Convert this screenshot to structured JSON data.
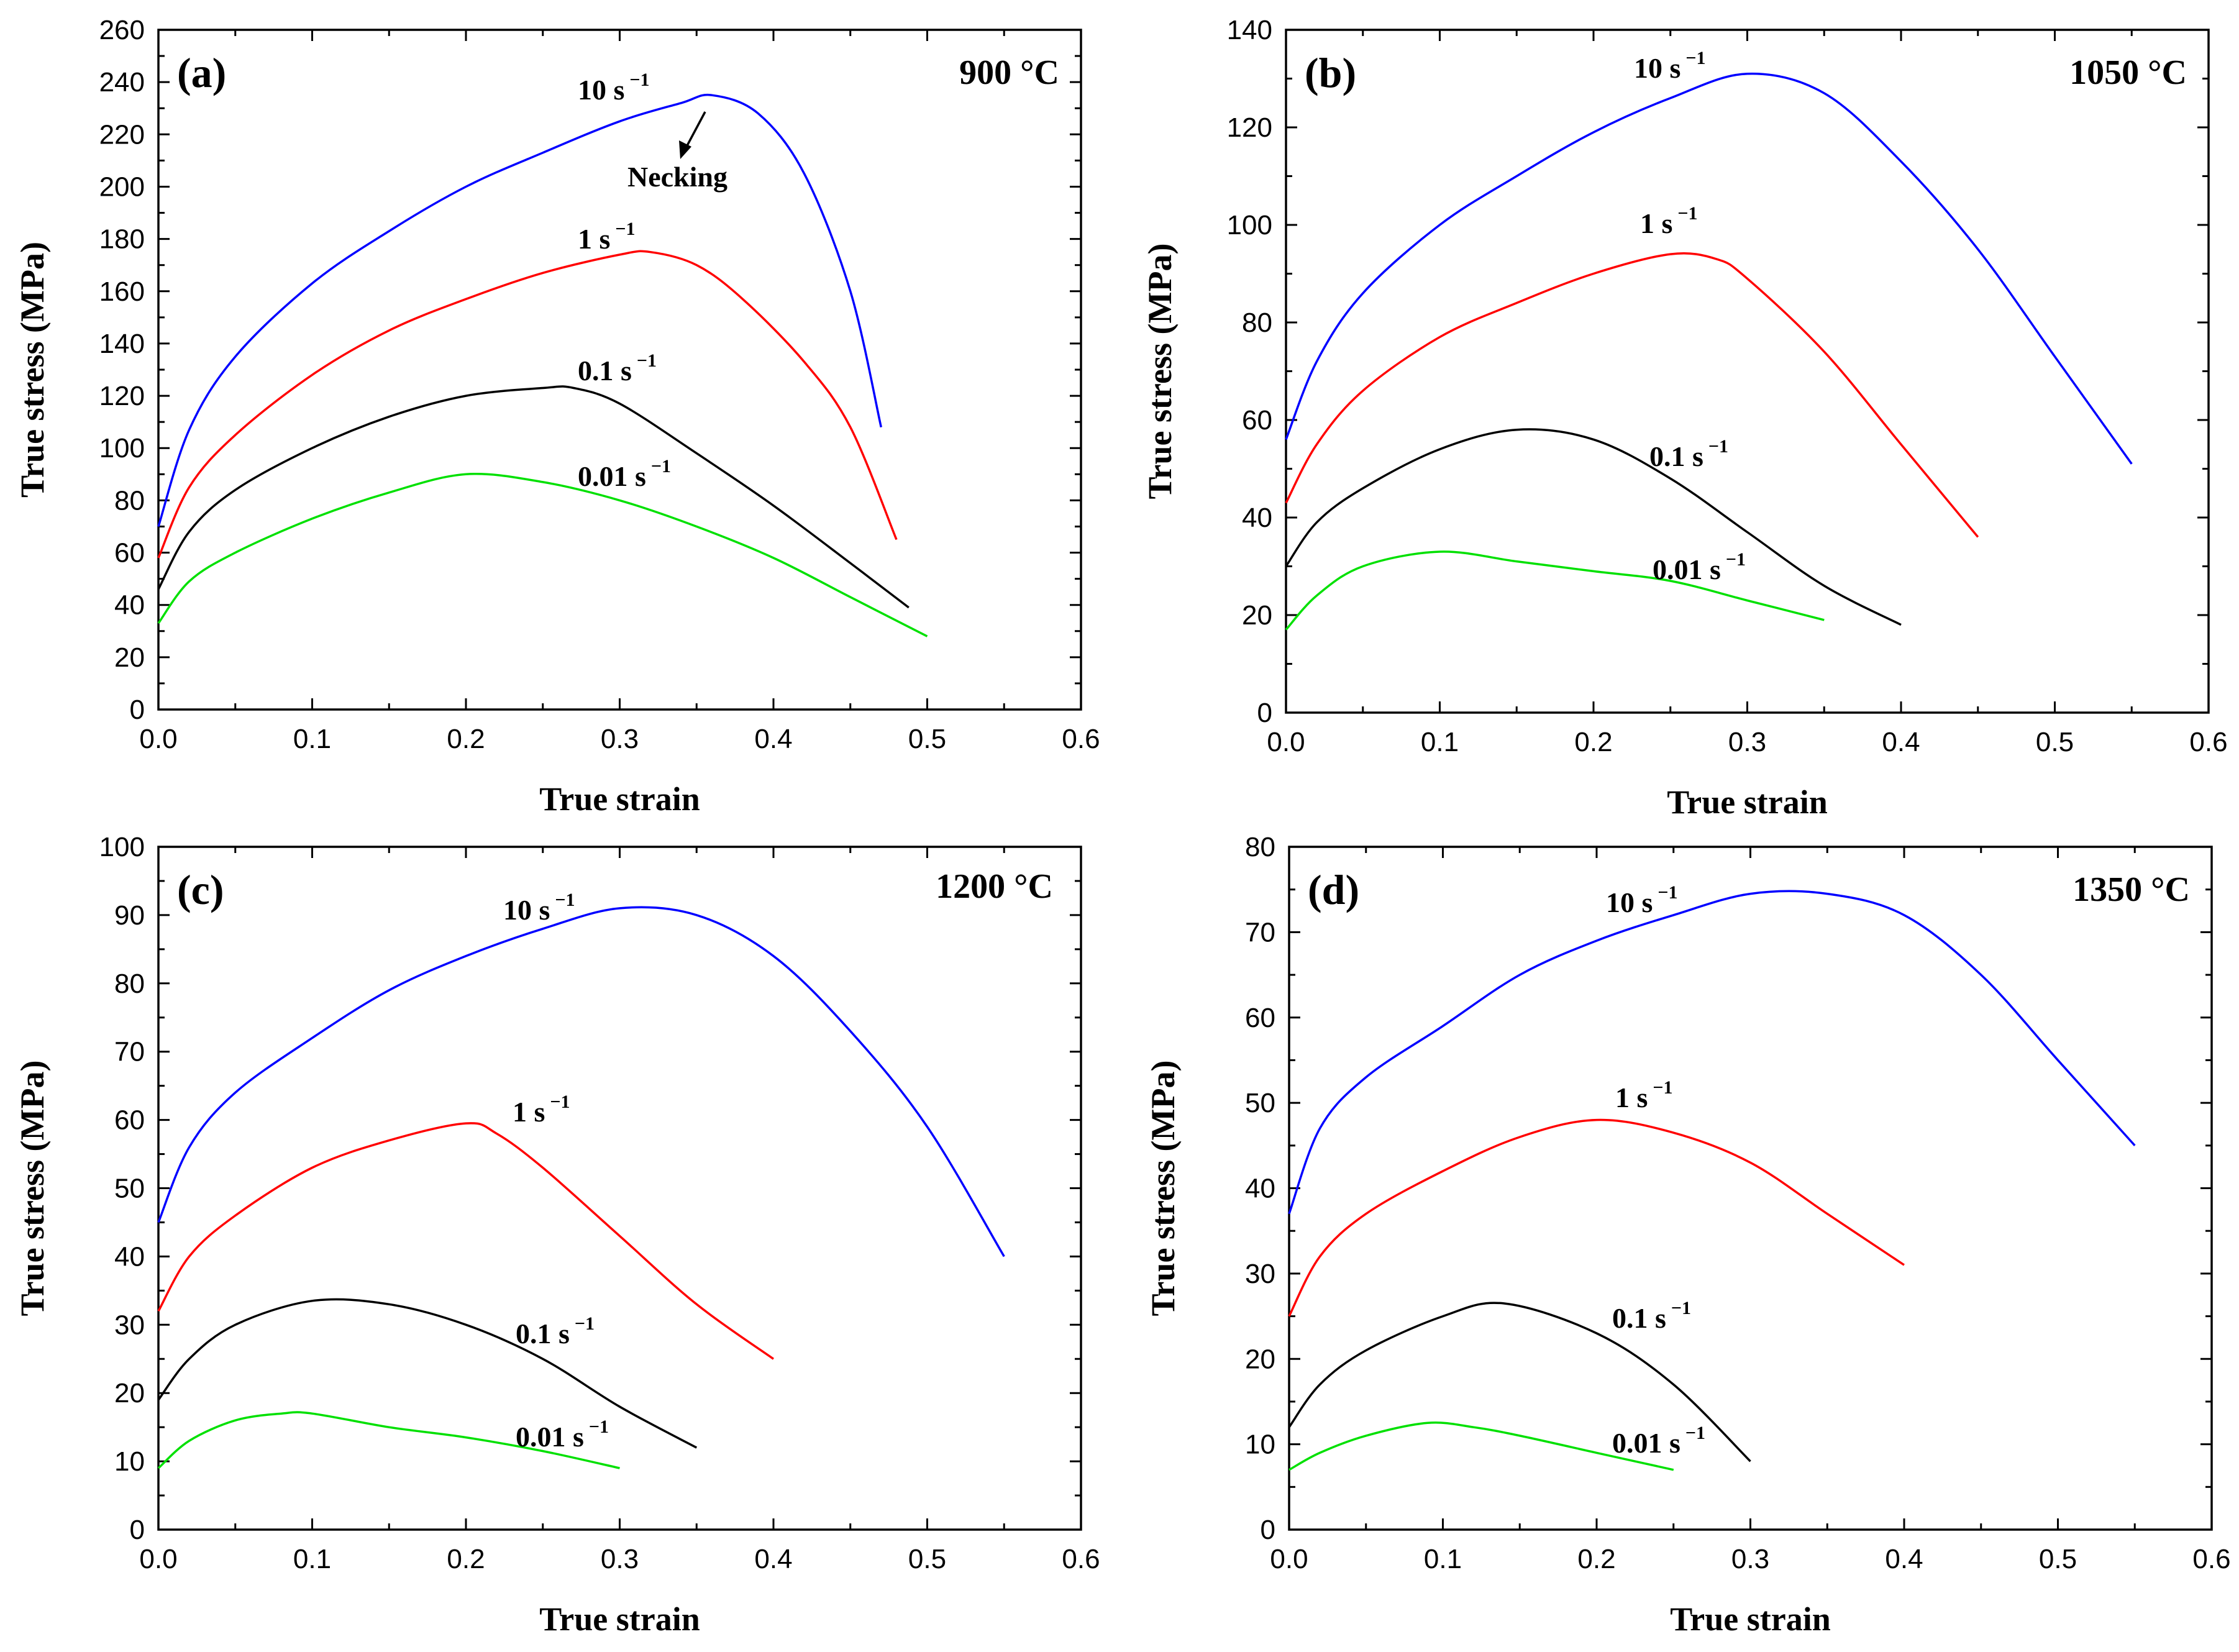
{
  "chart_data": [
    {
      "type": "line",
      "panel_label": "(a)",
      "temperature_label": "900 °C",
      "xlabel": "True strain",
      "ylabel": "True stress (MPa)",
      "xlim": [
        0,
        0.6
      ],
      "ylim": [
        0,
        260
      ],
      "xticks": [
        "0.0",
        "0.1",
        "0.2",
        "0.3",
        "0.4",
        "0.5",
        "0.6"
      ],
      "yticks": [
        "0",
        "20",
        "40",
        "60",
        "80",
        "100",
        "120",
        "140",
        "160",
        "180",
        "200",
        "220",
        "240",
        "260"
      ],
      "annotation": "Necking",
      "series": [
        {
          "name": "10 s-1",
          "rate": "10",
          "color": "#0000ff",
          "x": [
            0,
            0.02,
            0.05,
            0.1,
            0.15,
            0.2,
            0.25,
            0.3,
            0.34,
            0.36,
            0.39,
            0.42,
            0.45,
            0.47
          ],
          "y": [
            70,
            107,
            135,
            163,
            183,
            200,
            213,
            225,
            232,
            235,
            228,
            205,
            160,
            108
          ]
        },
        {
          "name": "1 s-1",
          "rate": "1",
          "color": "#ff0000",
          "x": [
            0,
            0.02,
            0.05,
            0.1,
            0.15,
            0.2,
            0.25,
            0.3,
            0.32,
            0.35,
            0.38,
            0.42,
            0.45,
            0.48
          ],
          "y": [
            58,
            85,
            105,
            128,
            145,
            157,
            167,
            174,
            175,
            170,
            157,
            133,
            108,
            65
          ]
        },
        {
          "name": "0.1 s-1",
          "rate": "0.1",
          "color": "#000000",
          "x": [
            0,
            0.02,
            0.05,
            0.1,
            0.15,
            0.2,
            0.25,
            0.27,
            0.3,
            0.35,
            0.4,
            0.45,
            0.488
          ],
          "y": [
            46,
            68,
            84,
            100,
            112,
            120,
            123,
            123,
            117,
            98,
            78,
            56,
            39
          ]
        },
        {
          "name": "0.01 s-1",
          "rate": "0.01",
          "color": "#00e000",
          "x": [
            0,
            0.02,
            0.05,
            0.1,
            0.15,
            0.2,
            0.25,
            0.3,
            0.35,
            0.4,
            0.45,
            0.5
          ],
          "y": [
            33,
            49,
            60,
            73,
            83,
            90,
            87,
            80,
            70,
            58,
            43,
            28
          ]
        }
      ]
    },
    {
      "type": "line",
      "panel_label": "(b)",
      "temperature_label": "1050 °C",
      "xlabel": "True strain",
      "ylabel": "True stress (MPa)",
      "xlim": [
        0,
        0.6
      ],
      "ylim": [
        0,
        140
      ],
      "xticks": [
        "0.0",
        "0.1",
        "0.2",
        "0.3",
        "0.4",
        "0.5",
        "0.6"
      ],
      "yticks": [
        "0",
        "20",
        "40",
        "60",
        "80",
        "100",
        "120",
        "140"
      ],
      "series": [
        {
          "name": "10 s-1",
          "rate": "10",
          "color": "#0000ff",
          "x": [
            0,
            0.02,
            0.05,
            0.1,
            0.15,
            0.2,
            0.25,
            0.3,
            0.35,
            0.4,
            0.45,
            0.5,
            0.55
          ],
          "y": [
            56,
            72,
            86,
            100,
            110,
            119,
            126,
            131,
            127,
            113,
            95,
            73,
            51
          ]
        },
        {
          "name": "1 s-1",
          "rate": "1",
          "color": "#ff0000",
          "x": [
            0,
            0.02,
            0.05,
            0.1,
            0.15,
            0.2,
            0.25,
            0.28,
            0.3,
            0.35,
            0.4,
            0.45
          ],
          "y": [
            43,
            55,
            66,
            77,
            84,
            90,
            94,
            93,
            89,
            74,
            55,
            36
          ]
        },
        {
          "name": "0.1 s-1",
          "rate": "0.1",
          "color": "#000000",
          "x": [
            0,
            0.02,
            0.05,
            0.1,
            0.15,
            0.2,
            0.25,
            0.3,
            0.35,
            0.4
          ],
          "y": [
            30,
            39,
            46,
            54,
            58,
            56,
            48,
            37,
            26,
            18
          ]
        },
        {
          "name": "0.01 s-1",
          "rate": "0.01",
          "color": "#00e000",
          "x": [
            0,
            0.02,
            0.05,
            0.1,
            0.15,
            0.2,
            0.25,
            0.3,
            0.35
          ],
          "y": [
            17,
            24,
            30,
            33,
            31,
            29,
            27,
            23,
            19
          ]
        }
      ]
    },
    {
      "type": "line",
      "panel_label": "(c)",
      "temperature_label": "1200 °C",
      "xlabel": "True strain",
      "ylabel": "True stress (MPa)",
      "xlim": [
        0,
        0.6
      ],
      "ylim": [
        0,
        100
      ],
      "xticks": [
        "0.0",
        "0.1",
        "0.2",
        "0.3",
        "0.4",
        "0.5",
        "0.6"
      ],
      "yticks": [
        "0",
        "10",
        "20",
        "30",
        "40",
        "50",
        "60",
        "70",
        "80",
        "90",
        "100"
      ],
      "series": [
        {
          "name": "10 s-1",
          "rate": "10",
          "color": "#0000ff",
          "x": [
            0,
            0.02,
            0.05,
            0.1,
            0.15,
            0.2,
            0.25,
            0.3,
            0.35,
            0.4,
            0.45,
            0.5,
            0.55
          ],
          "y": [
            45,
            56,
            64,
            72,
            79,
            84,
            88,
            91,
            90,
            84,
            73,
            59,
            40
          ]
        },
        {
          "name": "1 s-1",
          "rate": "1",
          "color": "#ff0000",
          "x": [
            0,
            0.02,
            0.05,
            0.1,
            0.15,
            0.2,
            0.22,
            0.25,
            0.3,
            0.35,
            0.4
          ],
          "y": [
            32,
            40,
            46,
            53,
            57,
            59.5,
            58,
            53,
            43,
            33,
            25
          ]
        },
        {
          "name": "0.1 s-1",
          "rate": "0.1",
          "color": "#000000",
          "x": [
            0,
            0.02,
            0.05,
            0.1,
            0.15,
            0.2,
            0.25,
            0.3,
            0.35
          ],
          "y": [
            19,
            25,
            30,
            33.5,
            33,
            30,
            25,
            18,
            12
          ]
        },
        {
          "name": "0.01 s-1",
          "rate": "0.01",
          "color": "#00e000",
          "x": [
            0,
            0.02,
            0.05,
            0.08,
            0.1,
            0.15,
            0.2,
            0.25,
            0.3
          ],
          "y": [
            9,
            13,
            16,
            17,
            17,
            15,
            13.5,
            11.5,
            9
          ]
        }
      ]
    },
    {
      "type": "line",
      "panel_label": "(d)",
      "temperature_label": "1350 °C",
      "xlabel": "True strain",
      "ylabel": "True stress (MPa)",
      "xlim": [
        0,
        0.6
      ],
      "ylim": [
        0,
        80
      ],
      "xticks": [
        "0.0",
        "0.1",
        "0.2",
        "0.3",
        "0.4",
        "0.5",
        "0.6"
      ],
      "yticks": [
        "0",
        "10",
        "20",
        "30",
        "40",
        "50",
        "60",
        "70",
        "80"
      ],
      "series": [
        {
          "name": "10 s-1",
          "rate": "10",
          "color": "#0000ff",
          "x": [
            0,
            0.02,
            0.05,
            0.1,
            0.15,
            0.2,
            0.25,
            0.3,
            0.35,
            0.4,
            0.45,
            0.5,
            0.55
          ],
          "y": [
            37,
            47,
            53,
            59,
            65,
            69,
            72,
            74.5,
            74.5,
            72,
            65,
            55,
            45
          ]
        },
        {
          "name": "1 s-1",
          "rate": "1",
          "color": "#ff0000",
          "x": [
            0,
            0.02,
            0.05,
            0.1,
            0.15,
            0.2,
            0.25,
            0.3,
            0.35,
            0.4
          ],
          "y": [
            25,
            32,
            37,
            42,
            46,
            48,
            46.5,
            43,
            37,
            31
          ]
        },
        {
          "name": "0.1 s-1",
          "rate": "0.1",
          "color": "#000000",
          "x": [
            0,
            0.02,
            0.05,
            0.1,
            0.14,
            0.2,
            0.25,
            0.3
          ],
          "y": [
            12,
            17,
            21,
            25,
            26.5,
            23,
            17,
            8
          ]
        },
        {
          "name": "0.01 s-1",
          "rate": "0.01",
          "color": "#00e000",
          "x": [
            0,
            0.02,
            0.05,
            0.09,
            0.12,
            0.15,
            0.2,
            0.25
          ],
          "y": [
            7,
            9,
            11,
            12.5,
            12,
            11,
            9,
            7
          ]
        }
      ]
    }
  ]
}
